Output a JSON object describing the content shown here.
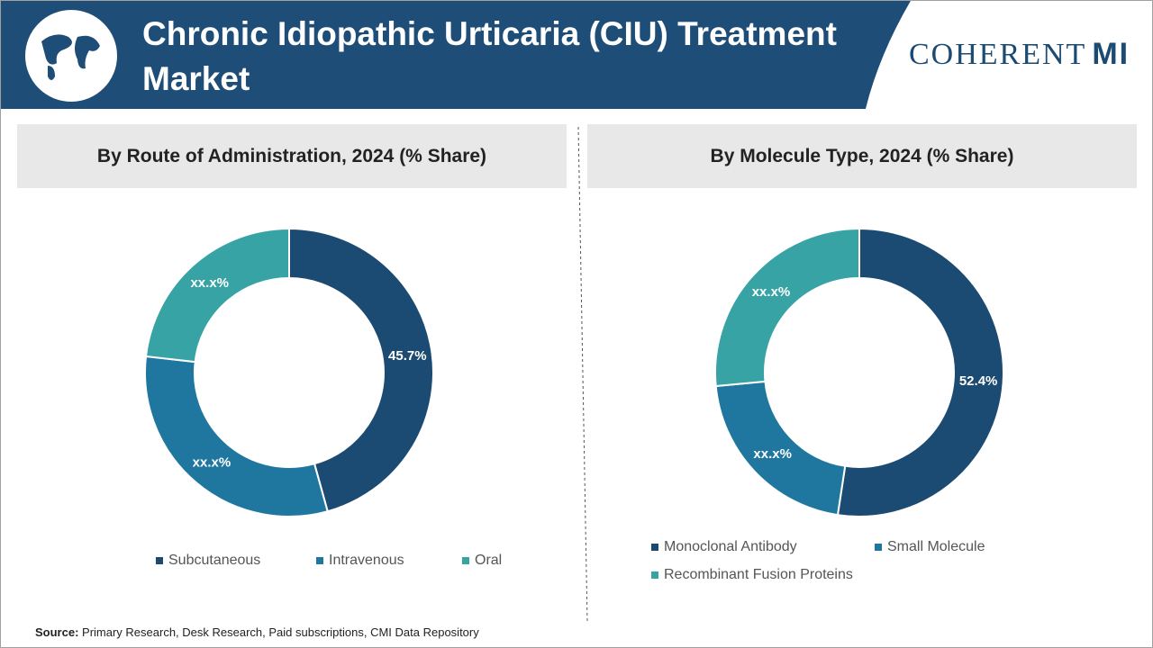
{
  "header": {
    "title": "Chronic Idiopathic Urticaria (CIU) Treatment Market",
    "logo_main": "COHERENT",
    "logo_accent": "MI"
  },
  "chart_data": [
    {
      "type": "donut",
      "title": "By Route of Administration, 2024 (% Share)",
      "categories": [
        "Subcutaneous",
        "Intravenous",
        "Oral"
      ],
      "values": [
        45.7,
        31.1,
        23.2
      ],
      "value_labels": [
        "45.7%",
        "xx.x%",
        "xx.x%"
      ],
      "colors": [
        "#1b4a72",
        "#1f77a0",
        "#38a3a5"
      ]
    },
    {
      "type": "donut",
      "title": "By Molecule Type, 2024 (% Share)",
      "categories": [
        "Monoclonal Antibody",
        "Small Molecule",
        "Recombinant Fusion Proteins"
      ],
      "values": [
        52.4,
        21.1,
        26.5
      ],
      "value_labels": [
        "52.4%",
        "xx.x%",
        "xx.x%"
      ],
      "colors": [
        "#1b4a72",
        "#1f77a0",
        "#38a3a5"
      ]
    }
  ],
  "source": {
    "label": "Source:",
    "text": "Primary Research, Desk Research, Paid subscriptions, CMI Data Repository"
  }
}
